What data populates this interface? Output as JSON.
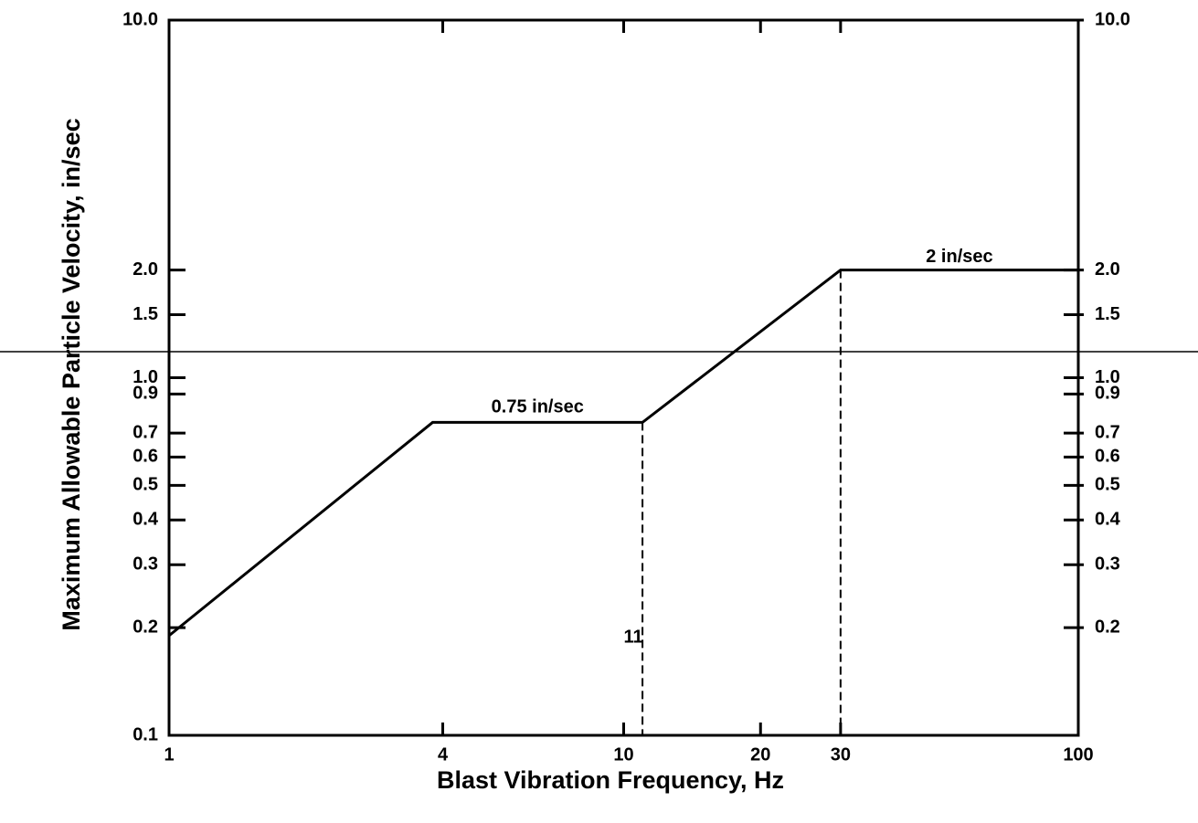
{
  "chart_data": {
    "type": "line",
    "x_label": "Blast Vibration Frequency, Hz",
    "y_label": "Maximum Allowable Particle Velocity, in/sec",
    "x": [
      1,
      3.8,
      11,
      30,
      100
    ],
    "series": [
      {
        "color": "#000000",
        "values": [
          0.19,
          0.75,
          0.75,
          2,
          2
        ]
      }
    ],
    "annotations": [
      "0.75 in/sec",
      "2 in/sec",
      "11"
    ],
    "xlim": [
      1,
      100
    ],
    "ylim": [
      0.1,
      10
    ],
    "y2lim": [
      0.1,
      10
    ],
    "xscale": "log",
    "yscale": "log",
    "xticks": [
      1,
      4,
      10,
      20,
      30,
      100
    ],
    "yticks": [
      0.1,
      0.2,
      0.3,
      0.4,
      0.5,
      0.6,
      0.7,
      0.9,
      {
        "value": 1,
        "label": "1.0"
      },
      1.5,
      {
        "value": 2,
        "label": "2.0"
      },
      {
        "value": 10,
        "label": "10.0"
      }
    ],
    "y2ticks": [
      0.2,
      0.3,
      0.4,
      0.5,
      0.6,
      0.7,
      0.9,
      {
        "value": 1,
        "label": "1.0"
      },
      1.5,
      {
        "value": 2,
        "label": "2.0"
      },
      {
        "value": 10,
        "label": "10.0"
      }
    ],
    "grid": false
  }
}
